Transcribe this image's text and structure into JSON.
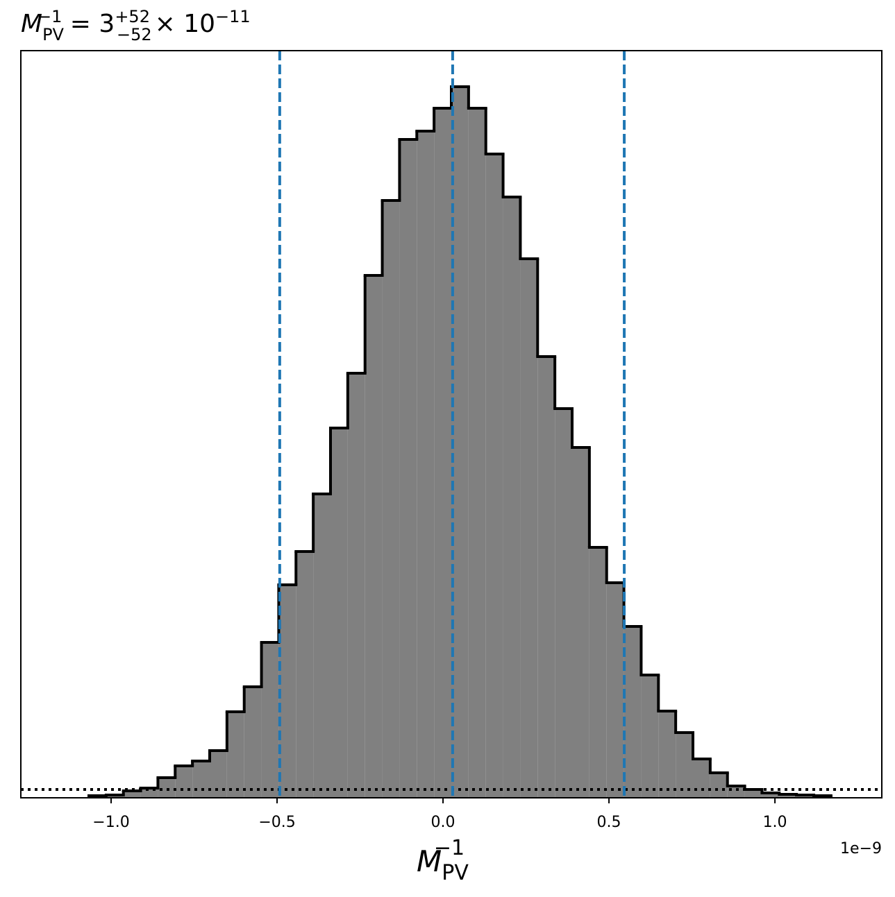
{
  "chart_data": {
    "type": "histogram",
    "title": {
      "symbol": "M",
      "sub": "PV",
      "sup": "−1",
      "eq": " = 3",
      "upper": "+52",
      "lower": "−52",
      "times": "× 10",
      "exp": "−11"
    },
    "xlabel": {
      "symbol": "M",
      "sub": "PV",
      "sup": "−1"
    },
    "x_offset_label": "1e−9",
    "bins": [
      -1.067,
      -1.015,
      -0.963,
      -0.911,
      -0.859,
      -0.807,
      -0.755,
      -0.703,
      -0.651,
      -0.599,
      -0.547,
      -0.495,
      -0.443,
      -0.391,
      -0.339,
      -0.287,
      -0.235,
      -0.183,
      -0.131,
      -0.079,
      -0.027,
      0.025,
      0.077,
      0.129,
      0.181,
      0.233,
      0.285,
      0.337,
      0.389,
      0.441,
      0.493,
      0.545,
      0.597,
      0.649,
      0.701,
      0.753,
      0.805,
      0.857,
      0.909,
      0.961,
      1.013,
      1.065,
      1.117,
      1.169
    ],
    "values": [
      3,
      4,
      10,
      14,
      29,
      46,
      53,
      68,
      124,
      160,
      224,
      307,
      355,
      438,
      533,
      612,
      753,
      861,
      949,
      961,
      994,
      1025,
      994,
      928,
      866,
      777,
      636,
      561,
      505,
      361,
      310,
      247,
      177,
      125,
      94,
      56,
      36,
      17,
      12,
      7,
      5,
      4,
      3
    ],
    "color": "#808080",
    "edge_color": "#000000",
    "vlines": [
      -0.492,
      0.029,
      0.546
    ],
    "vline_color": "#1f77b4",
    "hline": 12,
    "xlim": [
      -1.272,
      1.322
    ],
    "ylim": [
      0,
      1077
    ],
    "xticks": [
      {
        "value": -1.0,
        "label": "−1.0"
      },
      {
        "value": -0.5,
        "label": "−0.5"
      },
      {
        "value": 0.0,
        "label": "0.0"
      },
      {
        "value": 0.5,
        "label": "0.5"
      },
      {
        "value": 1.0,
        "label": "1.0"
      }
    ]
  }
}
